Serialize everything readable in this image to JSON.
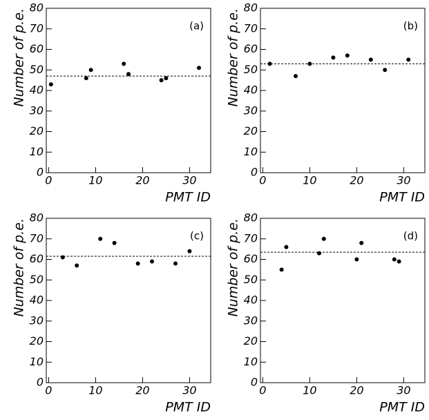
{
  "chart_data": [
    {
      "type": "scatter",
      "panel_label": "(a)",
      "x_label": "PMT ID",
      "y_label": "Number of p.e.",
      "x": [
        0.5,
        8,
        9,
        16,
        17,
        24,
        25,
        32
      ],
      "values": [
        43,
        46,
        50,
        53,
        48,
        45,
        46,
        51
      ],
      "reference_line": 47,
      "color": "#000000",
      "xlim": [
        -0.5,
        34.5
      ],
      "ylim": [
        0,
        80
      ],
      "xticks": [
        0,
        10,
        20,
        30
      ],
      "yticks": [
        0,
        10,
        20,
        30,
        40,
        50,
        60,
        70,
        80
      ]
    },
    {
      "type": "scatter",
      "panel_label": "(b)",
      "x_label": "PMT ID",
      "y_label": "Number of p.e.",
      "x": [
        1.5,
        7,
        10,
        15,
        18,
        23,
        26,
        31
      ],
      "values": [
        53,
        47,
        53,
        56,
        57,
        55,
        50,
        55
      ],
      "reference_line": 53,
      "color": "#000000",
      "xlim": [
        -0.5,
        34.5
      ],
      "ylim": [
        0,
        80
      ],
      "xticks": [
        0,
        10,
        20,
        30
      ],
      "yticks": [
        0,
        10,
        20,
        30,
        40,
        50,
        60,
        70,
        80
      ]
    },
    {
      "type": "scatter",
      "panel_label": "(c)",
      "x_label": "PMT ID",
      "y_label": "Number of p.e.",
      "x": [
        3,
        6,
        11,
        14,
        19,
        22,
        27,
        30
      ],
      "values": [
        61,
        57,
        70,
        68,
        58,
        59,
        58,
        64
      ],
      "reference_line": 61.5,
      "color": "#000000",
      "xlim": [
        -0.5,
        34.5
      ],
      "ylim": [
        0,
        80
      ],
      "xticks": [
        0,
        10,
        20,
        30
      ],
      "yticks": [
        0,
        10,
        20,
        30,
        40,
        50,
        60,
        70,
        80
      ]
    },
    {
      "type": "scatter",
      "panel_label": "(d)",
      "x_label": "PMT ID",
      "y_label": "Number of p.e.",
      "x": [
        4,
        5,
        12,
        13,
        20,
        21,
        28,
        29
      ],
      "values": [
        55,
        66,
        63,
        70,
        60,
        68,
        60,
        59
      ],
      "reference_line": 63.5,
      "color": "#000000",
      "xlim": [
        -0.5,
        34.5
      ],
      "ylim": [
        0,
        80
      ],
      "xticks": [
        0,
        10,
        20,
        30
      ],
      "yticks": [
        0,
        10,
        20,
        30,
        40,
        50,
        60,
        70,
        80
      ]
    }
  ]
}
